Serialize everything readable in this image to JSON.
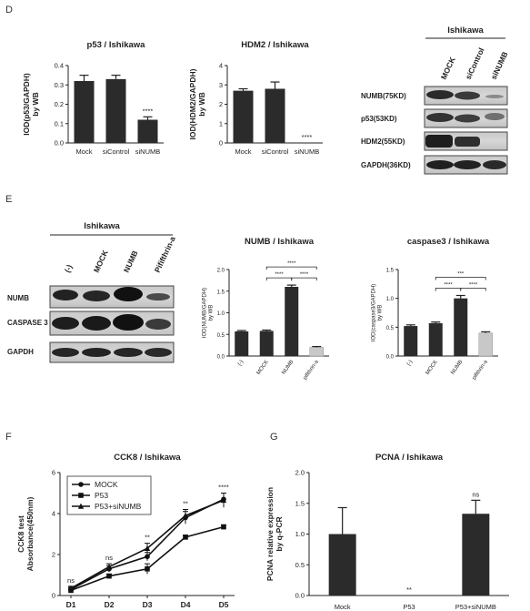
{
  "panels": {
    "D": "D",
    "E": "E",
    "F": "F",
    "G": "G"
  },
  "wb_D": {
    "header": "Ishikawa",
    "lanes": [
      "MOCK",
      "siControl",
      "siNUMB"
    ],
    "rows": [
      "NUMB(75KD)",
      "p53(53KD)",
      "HDM2(55KD)",
      "GAPDH(36KD)"
    ]
  },
  "wb_E": {
    "header": "Ishikawa",
    "lanes": [
      "(-)",
      "MOCK",
      "NUMB",
      "Pififthrin-a"
    ],
    "rows": [
      "NUMB",
      "CASPASE 3",
      "GAPDH"
    ]
  },
  "chart_data": [
    {
      "id": "d1",
      "type": "bar",
      "title": "p53 / Ishikawa",
      "ylabel": [
        "IOD(p53/GAPDH)",
        "by WB"
      ],
      "categories": [
        "Mock",
        "siControl",
        "siNUMB"
      ],
      "values": [
        0.32,
        0.33,
        0.12
      ],
      "errors": [
        0.03,
        0.02,
        0.015
      ],
      "ylim": [
        0,
        0.4
      ],
      "yticks": [
        0.0,
        0.1,
        0.2,
        0.3,
        0.4
      ],
      "sig": [
        "",
        "",
        "****"
      ]
    },
    {
      "id": "d2",
      "type": "bar",
      "title": "HDM2 / Ishikawa",
      "ylabel": [
        "IOD(HDM2/GAPDH)",
        "by WB"
      ],
      "categories": [
        "Mock",
        "siControl",
        "siNUMB"
      ],
      "values": [
        2.7,
        2.8,
        0
      ],
      "errors": [
        0.1,
        0.35,
        0
      ],
      "ylim": [
        0,
        4
      ],
      "yticks": [
        0,
        1,
        2,
        3,
        4
      ],
      "sig": [
        "",
        "",
        "****"
      ]
    },
    {
      "id": "e1",
      "type": "bar",
      "title": "NUMB / Ishikawa",
      "ylabel": [
        "IOD(NUMB/GAPDH)",
        "by WB"
      ],
      "categories": [
        "(-)",
        "MOCK",
        "NUMB",
        "pifithrin-a"
      ],
      "values": [
        0.57,
        0.58,
        1.6,
        0.2
      ],
      "errors": [
        0.02,
        0.02,
        0.04,
        0.02
      ],
      "ylim": [
        0,
        2.0
      ],
      "yticks": [
        0.0,
        0.5,
        1.0,
        1.5,
        2.0
      ],
      "brackets": [
        {
          "from": 1,
          "to": 2,
          "label": "****"
        },
        {
          "from": 2,
          "to": 3,
          "label": "****"
        },
        {
          "from": 1,
          "to": 3,
          "label": "****"
        }
      ]
    },
    {
      "id": "e2",
      "type": "bar",
      "title": "caspase3 / Ishikawa",
      "ylabel": [
        "IOD(caspase3/GAPDH)",
        "by WB"
      ],
      "categories": [
        "(-)",
        "MOCK",
        "NUMB",
        "pifithrin-a"
      ],
      "values": [
        0.52,
        0.57,
        1.0,
        0.4
      ],
      "errors": [
        0.02,
        0.02,
        0.05,
        0.02
      ],
      "ylim": [
        0,
        1.5
      ],
      "yticks": [
        0.0,
        0.5,
        1.0,
        1.5
      ],
      "brackets": [
        {
          "from": 1,
          "to": 2,
          "label": "****"
        },
        {
          "from": 2,
          "to": 3,
          "label": "****"
        },
        {
          "from": 1,
          "to": 3,
          "label": "***"
        }
      ]
    },
    {
      "id": "f",
      "type": "line",
      "title": "CCK8 / Ishikawa",
      "ylabel": [
        "CCK8 test",
        "Absorbance(450nm)"
      ],
      "x": [
        "D1",
        "D2",
        "D3",
        "D4",
        "D5"
      ],
      "ylim": [
        0,
        6
      ],
      "yticks": [
        0,
        2,
        4,
        6
      ],
      "series": [
        {
          "name": "MOCK",
          "marker": "circle",
          "values": [
            0.3,
            1.3,
            1.9,
            3.8,
            4.7
          ],
          "errors": [
            0.1,
            0.15,
            0.2,
            0.3,
            0.3
          ]
        },
        {
          "name": "P53",
          "marker": "square",
          "values": [
            0.25,
            0.95,
            1.3,
            2.85,
            3.35
          ],
          "errors": [
            0.05,
            0.1,
            0.25,
            0.1,
            0.1
          ]
        },
        {
          "name": "P53+siNUMB",
          "marker": "triangle",
          "values": [
            0.35,
            1.4,
            2.3,
            3.9,
            4.65
          ],
          "errors": [
            0.1,
            0.15,
            0.25,
            0.3,
            0.35
          ]
        }
      ],
      "sig": [
        "ns",
        "ns",
        "**",
        "**",
        "****"
      ],
      "legend": "top-left"
    },
    {
      "id": "g",
      "type": "bar",
      "title": "PCNA / Ishikawa",
      "ylabel": [
        "PCNA relative expression",
        "by q-PCR"
      ],
      "categories": [
        "Mock",
        "P53",
        "P53+siNUMB"
      ],
      "values": [
        1.0,
        0,
        1.33
      ],
      "errors": [
        0.43,
        0,
        0.22
      ],
      "ylim": [
        0,
        2.0
      ],
      "yticks": [
        0.0,
        0.5,
        1.0,
        1.5,
        2.0
      ],
      "sig": [
        "",
        "**",
        "ns"
      ]
    }
  ]
}
